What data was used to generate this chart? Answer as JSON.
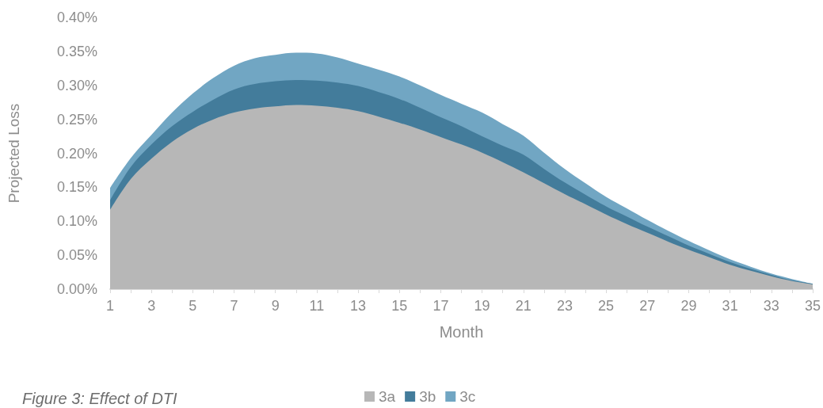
{
  "chart_data": {
    "type": "area",
    "stacked": true,
    "xlabel": "Month",
    "ylabel": "Projected Loss",
    "annotations": [
      "Figure 3: Effect of DTI"
    ],
    "x": [
      1,
      2,
      3,
      4,
      5,
      6,
      7,
      8,
      9,
      10,
      11,
      12,
      13,
      14,
      15,
      16,
      17,
      18,
      19,
      20,
      21,
      22,
      23,
      24,
      25,
      26,
      27,
      28,
      29,
      30,
      31,
      32,
      33,
      34,
      35
    ],
    "xlim": [
      1,
      35
    ],
    "xticks": [
      1,
      {
        "value": 2,
        "label": null
      },
      3,
      {
        "value": 4,
        "label": null
      },
      5,
      {
        "value": 6,
        "label": null
      },
      7,
      {
        "value": 8,
        "label": null
      },
      9,
      {
        "value": 10,
        "label": null
      },
      11,
      {
        "value": 12,
        "label": null
      },
      13,
      {
        "value": 14,
        "label": null
      },
      15,
      {
        "value": 16,
        "label": null
      },
      17,
      {
        "value": 18,
        "label": null
      },
      19,
      {
        "value": 20,
        "label": null
      },
      21,
      {
        "value": 22,
        "label": null
      },
      23,
      {
        "value": 24,
        "label": null
      },
      25,
      {
        "value": 26,
        "label": null
      },
      27,
      {
        "value": 28,
        "label": null
      },
      29,
      {
        "value": 30,
        "label": null
      },
      31,
      {
        "value": 32,
        "label": null
      },
      33,
      {
        "value": 34,
        "label": null
      },
      35
    ],
    "ylim": [
      0,
      0.4
    ],
    "yticks": [
      {
        "value": 0,
        "label": "0.00%"
      },
      {
        "value": 0.05,
        "label": "0.05%"
      },
      {
        "value": 0.1,
        "label": "0.10%"
      },
      {
        "value": 0.15,
        "label": "0.15%"
      },
      {
        "value": 0.2,
        "label": "0.20%"
      },
      {
        "value": 0.25,
        "label": "0.25%"
      },
      {
        "value": 0.3,
        "label": "0.30%"
      },
      {
        "value": 0.35,
        "label": "0.35%"
      },
      {
        "value": 0.4,
        "label": "0.40%"
      }
    ],
    "grid": false,
    "legend": "bottom",
    "marker": "none",
    "series": [
      {
        "name": "3a",
        "color": "#b7b7b7",
        "values": [
          0.117,
          0.162,
          0.192,
          0.217,
          0.236,
          0.25,
          0.26,
          0.266,
          0.269,
          0.271,
          0.27,
          0.267,
          0.262,
          0.254,
          0.245,
          0.235,
          0.224,
          0.213,
          0.201,
          0.187,
          0.172,
          0.156,
          0.14,
          0.125,
          0.11,
          0.096,
          0.083,
          0.07,
          0.058,
          0.047,
          0.036,
          0.027,
          0.019,
          0.012,
          0.007
        ]
      },
      {
        "name": "3b",
        "color": "#437c9b",
        "values": [
          0.014,
          0.018,
          0.021,
          0.023,
          0.025,
          0.029,
          0.034,
          0.036,
          0.037,
          0.037,
          0.037,
          0.037,
          0.037,
          0.036,
          0.035,
          0.032,
          0.029,
          0.027,
          0.024,
          0.024,
          0.026,
          0.021,
          0.017,
          0.014,
          0.012,
          0.011,
          0.009,
          0.008,
          0.006,
          0.005,
          0.004,
          0.003,
          0.002,
          0.001,
          0.001
        ]
      },
      {
        "name": "3c",
        "color": "#71a6c3",
        "values": [
          0.018,
          0.013,
          0.014,
          0.02,
          0.027,
          0.032,
          0.035,
          0.038,
          0.039,
          0.04,
          0.04,
          0.037,
          0.033,
          0.033,
          0.033,
          0.033,
          0.033,
          0.033,
          0.035,
          0.032,
          0.028,
          0.024,
          0.02,
          0.017,
          0.014,
          0.012,
          0.01,
          0.008,
          0.007,
          0.005,
          0.004,
          0.003,
          0.002,
          0.002,
          0
        ]
      }
    ]
  }
}
